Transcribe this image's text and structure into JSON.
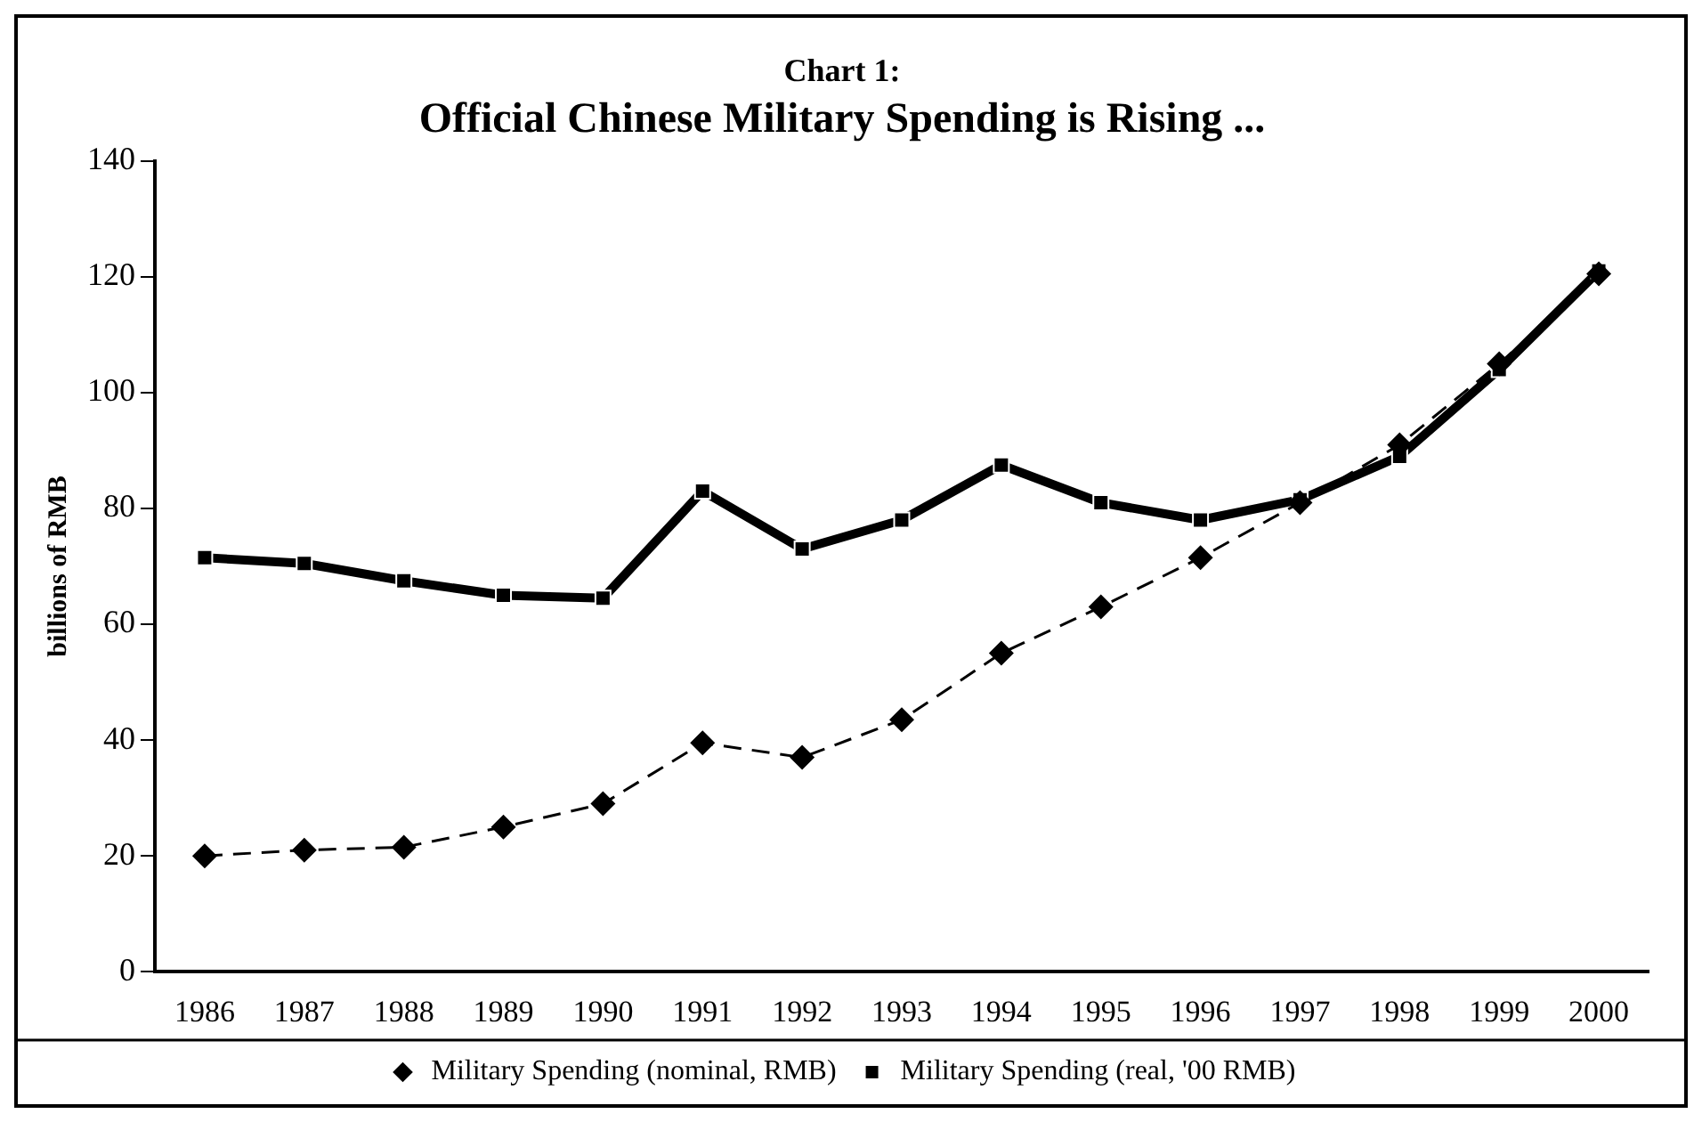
{
  "chart_data": {
    "type": "line",
    "title": "Chart 1:",
    "subtitle": "Official Chinese Military Spending is Rising ...",
    "ylabel": "billions of RMB",
    "categories": [
      "1986",
      "1987",
      "1988",
      "1989",
      "1990",
      "1991",
      "1992",
      "1993",
      "1994",
      "1995",
      "1996",
      "1997",
      "1998",
      "1999",
      "2000"
    ],
    "ylim": [
      0,
      140
    ],
    "yticks": [
      0,
      20,
      40,
      60,
      80,
      100,
      120,
      140
    ],
    "legend": "bottom",
    "series": [
      {
        "name": "Military Spending (nominal, RMB)",
        "color": "#000000",
        "marker": "diamond",
        "line_style": "dashed",
        "values": [
          20,
          21,
          21.5,
          25,
          29,
          39.5,
          37,
          43.5,
          55,
          63,
          71.5,
          81,
          91,
          105,
          120.5
        ]
      },
      {
        "name": "Military Spending (real, '00 RMB)",
        "color": "#000000",
        "marker": "square",
        "line_style": "solid",
        "values": [
          71.5,
          70.5,
          67.5,
          65,
          64.5,
          83,
          73,
          78,
          87.5,
          81,
          78,
          81.5,
          89,
          104,
          121
        ]
      }
    ]
  }
}
